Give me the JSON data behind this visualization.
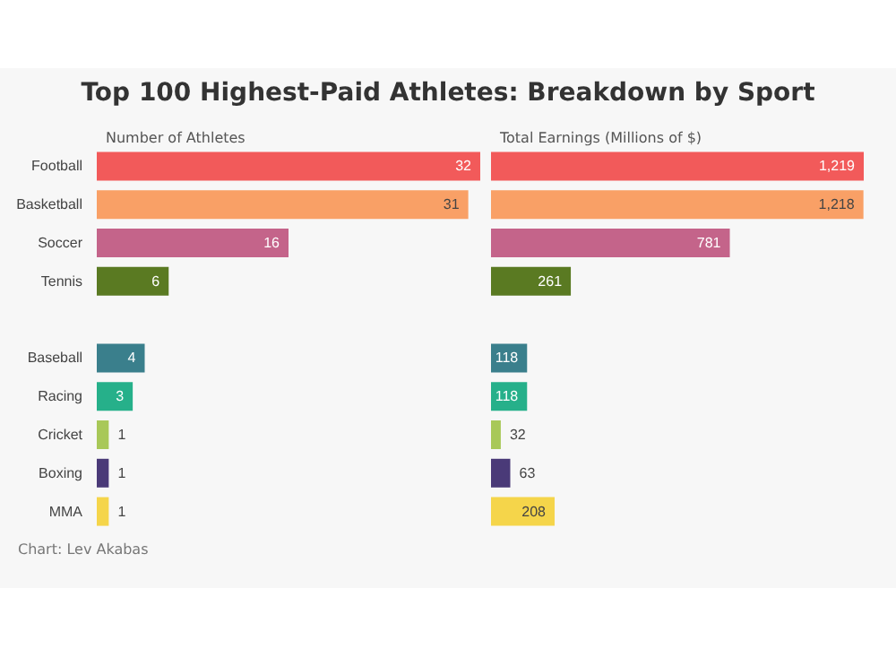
{
  "chart_data": [
    {
      "type": "bar",
      "orientation": "horizontal",
      "title": "Top 100 Highest-Paid Athletes: Breakdown by Sport",
      "xlabel": "Number of Athletes",
      "annotations": [
        "Chart: Lev Akabas"
      ],
      "data_labels": true,
      "tick_labels": "y",
      "categories": [
        "Football",
        "Basketball",
        "Soccer",
        "Tennis",
        null,
        "Baseball",
        "Racing",
        "Cricket",
        "Boxing",
        "MMA"
      ],
      "values": [
        32,
        31,
        16,
        6,
        null,
        4,
        3,
        1,
        1,
        1
      ],
      "colors": [
        "#f25a5a",
        "#f9a066",
        "#c4648a",
        "#5a7a22",
        "#1f4e79",
        "#3a7f8c",
        "#26b08a",
        "#a8c858",
        "#4a3a78",
        "#f5d54a"
      ]
    },
    {
      "type": "bar",
      "orientation": "horizontal",
      "xlabel": "Total Earnings (Millions of $)",
      "tick_labels": false,
      "categories": [
        null,
        null,
        null,
        null,
        null,
        null,
        null,
        null,
        null,
        null
      ],
      "values": [
        1219,
        1218,
        781,
        261,
        null,
        118,
        118,
        32,
        63,
        208
      ],
      "value_labels": [
        "1,219",
        "1,218",
        "781",
        "261",
        null,
        "118",
        "118",
        "32",
        "63",
        "208"
      ],
      "colors": [
        "#f25a5a",
        "#f9a066",
        "#c4648a",
        "#5a7a22",
        "#1f4e79",
        "#3a7f8c",
        "#26b08a",
        "#a8c858",
        "#4a3a78",
        "#f5d54a"
      ]
    }
  ]
}
